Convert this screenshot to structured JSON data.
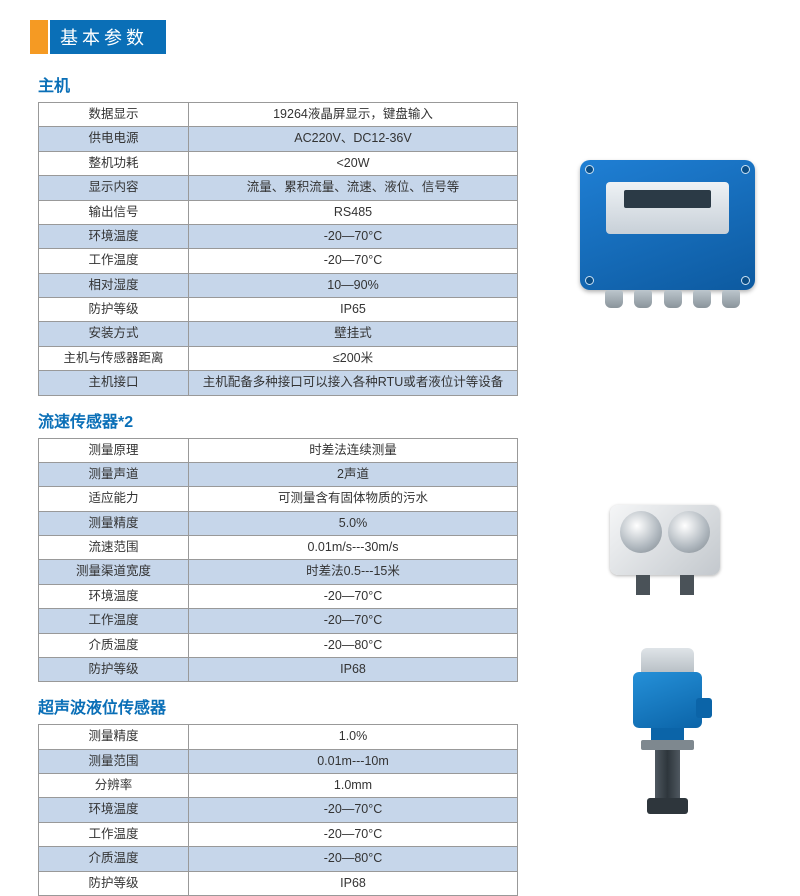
{
  "page_title": "基本参数",
  "sections": [
    {
      "title": "主机",
      "rows": [
        {
          "label": "数据显示",
          "value": "19264液晶屏显示，键盘输入",
          "shade": false
        },
        {
          "label": "供电电源",
          "value": "AC220V、DC12-36V",
          "shade": true
        },
        {
          "label": "整机功耗",
          "value": "<20W",
          "shade": false
        },
        {
          "label": "显示内容",
          "value": "流量、累积流量、流速、液位、信号等",
          "shade": true
        },
        {
          "label": "输出信号",
          "value": "RS485",
          "shade": false
        },
        {
          "label": "环境温度",
          "value": "-20—70°C",
          "shade": true
        },
        {
          "label": "工作温度",
          "value": "-20—70°C",
          "shade": false
        },
        {
          "label": "相对湿度",
          "value": "10—90%",
          "shade": true
        },
        {
          "label": "防护等级",
          "value": "IP65",
          "shade": false
        },
        {
          "label": "安装方式",
          "value": "壁挂式",
          "shade": true
        },
        {
          "label": "主机与传感器距离",
          "value": "≤200米",
          "shade": false
        },
        {
          "label": "主机接口",
          "value": "主机配备多种接口可以接入各种RTU或者液位计等设备",
          "shade": true
        }
      ]
    },
    {
      "title": "流速传感器*2",
      "rows": [
        {
          "label": "测量原理",
          "value": "时差法连续测量",
          "shade": false
        },
        {
          "label": "测量声道",
          "value": "2声道",
          "shade": true
        },
        {
          "label": "适应能力",
          "value": "可测量含有固体物质的污水",
          "shade": false
        },
        {
          "label": "测量精度",
          "value": "5.0%",
          "shade": true
        },
        {
          "label": "流速范围",
          "value": "0.01m/s---30m/s",
          "shade": false
        },
        {
          "label": "测量渠道宽度",
          "value": "时差法0.5---15米",
          "shade": true
        },
        {
          "label": "环境温度",
          "value": "-20—70°C",
          "shade": false
        },
        {
          "label": "工作温度",
          "value": "-20—70°C",
          "shade": true
        },
        {
          "label": "介质温度",
          "value": "-20—80°C",
          "shade": false
        },
        {
          "label": "防护等级",
          "value": "IP68",
          "shade": true
        }
      ]
    },
    {
      "title": "超声波液位传感器",
      "rows": [
        {
          "label": "测量精度",
          "value": "1.0%",
          "shade": false
        },
        {
          "label": "测量范围",
          "value": "0.01m---10m",
          "shade": true
        },
        {
          "label": "分辨率",
          "value": "1.0mm",
          "shade": false
        },
        {
          "label": "环境温度",
          "value": "-20—70°C",
          "shade": true
        },
        {
          "label": "工作温度",
          "value": "-20—70°C",
          "shade": false
        },
        {
          "label": "介质温度",
          "value": "-20—80°C",
          "shade": true
        },
        {
          "label": "防护等级",
          "value": "IP68",
          "shade": false
        }
      ]
    }
  ],
  "colors": {
    "header_bg": "#0a6fb7",
    "accent_square": "#f59a23",
    "section_title": "#0a6fb7",
    "shade_bg": "#c6d6ea",
    "border": "#999999"
  }
}
